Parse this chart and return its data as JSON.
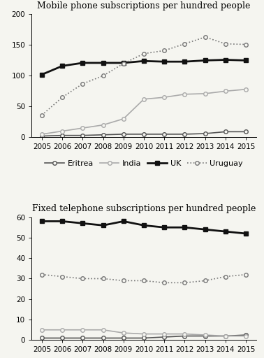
{
  "years": [
    2005,
    2006,
    2007,
    2008,
    2009,
    2010,
    2011,
    2012,
    2013,
    2014,
    2015
  ],
  "mobile": {
    "Eritrea": [
      2,
      3,
      3,
      4,
      5,
      5,
      5,
      5,
      6,
      9,
      9
    ],
    "India": [
      5,
      10,
      15,
      20,
      30,
      62,
      65,
      70,
      71,
      75,
      78
    ],
    "UK": [
      102,
      116,
      121,
      121,
      121,
      124,
      123,
      123,
      125,
      126,
      125
    ],
    "Uruguay": [
      36,
      65,
      87,
      100,
      120,
      136,
      141,
      152,
      163,
      152,
      151
    ]
  },
  "fixed": {
    "Eritrea": [
      1,
      1,
      1,
      1,
      1,
      1,
      1.5,
      2,
      2,
      2,
      2.5
    ],
    "India": [
      5,
      5,
      5,
      5,
      3.5,
      3,
      3,
      3,
      2.5,
      2,
      2
    ],
    "UK": [
      58,
      58,
      57,
      56,
      58,
      56,
      55,
      55,
      54,
      53,
      52
    ],
    "Uruguay": [
      32,
      31,
      30,
      30,
      29,
      29,
      28,
      28,
      29,
      31,
      32
    ]
  },
  "colors": {
    "Eritrea": "#555555",
    "India": "#aaaaaa",
    "UK": "#111111",
    "Uruguay": "#777777"
  },
  "line_styles": {
    "Eritrea": "-",
    "India": "-",
    "UK": "-",
    "Uruguay": ":"
  },
  "markers": {
    "Eritrea": "o",
    "India": "o",
    "UK": "s",
    "Uruguay": "o"
  },
  "marker_sizes": {
    "Eritrea": 4,
    "India": 4,
    "UK": 5,
    "Uruguay": 4
  },
  "line_widths": {
    "Eritrea": 1.2,
    "India": 1.2,
    "UK": 2.0,
    "Uruguay": 1.2
  },
  "open_marker_countries": [
    "Eritrea",
    "India",
    "Uruguay"
  ],
  "mobile_title": "Mobile phone subscriptions per hundred people",
  "fixed_title": "Fixed telephone subscriptions per hundred people",
  "mobile_ylim": [
    0,
    200
  ],
  "mobile_yticks": [
    0,
    50,
    100,
    150,
    200
  ],
  "fixed_ylim": [
    0,
    60
  ],
  "fixed_yticks": [
    0,
    10,
    20,
    30,
    40,
    50,
    60
  ],
  "bg_color": "#f5f5f0",
  "title_fontsize": 9,
  "tick_fontsize": 7.5,
  "legend_fontsize": 8,
  "countries": [
    "Eritrea",
    "India",
    "UK",
    "Uruguay"
  ]
}
